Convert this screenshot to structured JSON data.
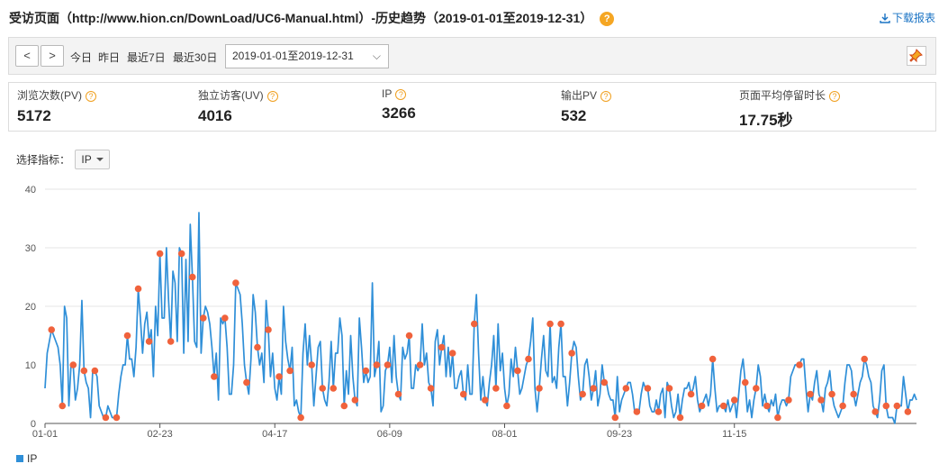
{
  "header": {
    "title": "受访页面（http://www.hion.cn/DownLoad/UC6-Manual.html）-历史趋势（2019-01-01至2019-12-31）",
    "help": "?",
    "download_label": "下载报表"
  },
  "toolbar": {
    "prev": "<",
    "next": ">",
    "today": "今日",
    "yesterday": "昨日",
    "last7": "最近7日",
    "last30": "最近30日",
    "date_range": "2019-01-01至2019-12-31",
    "help": "?"
  },
  "stats": [
    {
      "label": "浏览次数(PV)",
      "value": "5172"
    },
    {
      "label": "独立访客(UV)",
      "value": "4016"
    },
    {
      "label": "IP",
      "value": "3266"
    },
    {
      "label": "输出PV",
      "value": "532"
    },
    {
      "label": "页面平均停留时长",
      "value": "17.75秒"
    }
  ],
  "metric": {
    "label": "选择指标：",
    "selected": "IP"
  },
  "colors": {
    "line": "#2f8fd8",
    "marker": "#f0623c",
    "grid": "#e6e6e6",
    "axis": "#555555"
  },
  "chart_data": {
    "type": "line",
    "x_start": "2019-01-01",
    "x_end": "2019-12-31",
    "x_tick_labels": [
      "01-01",
      "02-23",
      "04-17",
      "06-09",
      "08-01",
      "09-23",
      "11-15"
    ],
    "y_ticks": [
      "0",
      "10",
      "20",
      "30",
      "40"
    ],
    "ylim": [
      0,
      40
    ],
    "grid": "horizontal",
    "legend": "bottom-left",
    "series": [
      {
        "name": "IP",
        "values": [
          6,
          12,
          14,
          16,
          15,
          14,
          13,
          10,
          3,
          20,
          18,
          3,
          10,
          10,
          4,
          6,
          10,
          21,
          9,
          7,
          6,
          1,
          9,
          9,
          8,
          3,
          2,
          1,
          1,
          3,
          2,
          1,
          1,
          1,
          5,
          8,
          10,
          10,
          15,
          11,
          11,
          8,
          13,
          23,
          18,
          12,
          17,
          19,
          14,
          16,
          8,
          20,
          15,
          29,
          18,
          18,
          30,
          21,
          14,
          26,
          24,
          14,
          30,
          29,
          12,
          28,
          14,
          34,
          25,
          14,
          13,
          36,
          12,
          18,
          20,
          19,
          17,
          13,
          8,
          12,
          4,
          18,
          17,
          18,
          13,
          5,
          5,
          10,
          24,
          23,
          22,
          17,
          10,
          7,
          5,
          11,
          22,
          19,
          13,
          10,
          12,
          7,
          21,
          16,
          8,
          12,
          6,
          4,
          8,
          5,
          20,
          14,
          11,
          9,
          13,
          3,
          4,
          2,
          1,
          12,
          17,
          10,
          15,
          10,
          3,
          8,
          13,
          14,
          6,
          4,
          3,
          7,
          14,
          6,
          12,
          12,
          18,
          15,
          3,
          9,
          5,
          15,
          8,
          4,
          3,
          18,
          13,
          7,
          9,
          7,
          8,
          24,
          8,
          10,
          14,
          2,
          3,
          9,
          10,
          13,
          7,
          15,
          8,
          5,
          4,
          13,
          11,
          12,
          15,
          6,
          6,
          10,
          9,
          10,
          17,
          10,
          12,
          7,
          6,
          3,
          14,
          16,
          10,
          13,
          15,
          8,
          13,
          8,
          12,
          6,
          6,
          8,
          9,
          5,
          4,
          10,
          5,
          5,
          17,
          22,
          12,
          4,
          8,
          4,
          3,
          7,
          10,
          15,
          6,
          17,
          9,
          12,
          6,
          3,
          5,
          11,
          8,
          13,
          9,
          5,
          6,
          8,
          10,
          11,
          14,
          18,
          6,
          2,
          6,
          11,
          15,
          9,
          8,
          17,
          7,
          8,
          6,
          13,
          17,
          8,
          8,
          3,
          7,
          12,
          14,
          13,
          8,
          4,
          5,
          10,
          11,
          8,
          4,
          6,
          9,
          3,
          5,
          10,
          7,
          7,
          5,
          4,
          4,
          1,
          8,
          2,
          4,
          5,
          6,
          7,
          7,
          5,
          2,
          2,
          2,
          5,
          7,
          6,
          6,
          3,
          2,
          2,
          4,
          2,
          5,
          6,
          1,
          7,
          6,
          3,
          1,
          2,
          5,
          1,
          4,
          6,
          6,
          7,
          5,
          6,
          8,
          4,
          2,
          3,
          4,
          5,
          3,
          5,
          11,
          6,
          2,
          3,
          3,
          3,
          2,
          4,
          2,
          3,
          4,
          1,
          5,
          9,
          11,
          7,
          2,
          4,
          1,
          4,
          6,
          10,
          8,
          3,
          5,
          3,
          2,
          4,
          3,
          5,
          1,
          3,
          4,
          4,
          3,
          4,
          8,
          9,
          10,
          10,
          10,
          11,
          11,
          6,
          2,
          5,
          4,
          7,
          9,
          5,
          4,
          2,
          6,
          7,
          9,
          5,
          3,
          2,
          1,
          2,
          3,
          7,
          10,
          10,
          9,
          5,
          3,
          5,
          7,
          8,
          11,
          10,
          8,
          7,
          3,
          2,
          1,
          4,
          9,
          10,
          3,
          1,
          1,
          1,
          0,
          3,
          3,
          3,
          8,
          5,
          2,
          4,
          4,
          5,
          4
        ]
      }
    ]
  }
}
